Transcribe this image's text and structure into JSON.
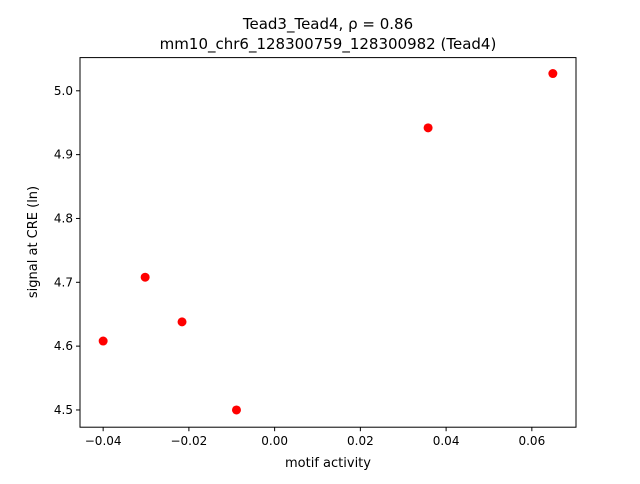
{
  "chart_data": {
    "type": "scatter",
    "title": "Tead3_Tead4, ρ = 0.86",
    "subtitle": "mm10_chr6_128300759_128300982 (Tead4)",
    "x_label": "motif activity",
    "y_label": "signal at CRE (ln)",
    "color": "#ff0000",
    "x": [
      -0.04,
      -0.0302,
      -0.0216,
      -0.0089,
      0.0358,
      0.0649
    ],
    "values": [
      4.608,
      4.708,
      4.638,
      4.5,
      4.942,
      5.027
    ],
    "xlim": [
      -0.0454,
      0.0703
    ],
    "ylim": [
      4.473,
      5.052
    ],
    "xticks": [
      {
        "value": -0.04,
        "label": "−0.04"
      },
      {
        "value": -0.02,
        "label": "−0.02"
      },
      {
        "value": 0,
        "label": "0.00"
      },
      0.02,
      0.04,
      0.06
    ],
    "yticks": [
      4.5,
      4.6,
      4.7,
      4.8,
      4.9,
      {
        "value": 5.0,
        "label": "5.0"
      }
    ]
  }
}
